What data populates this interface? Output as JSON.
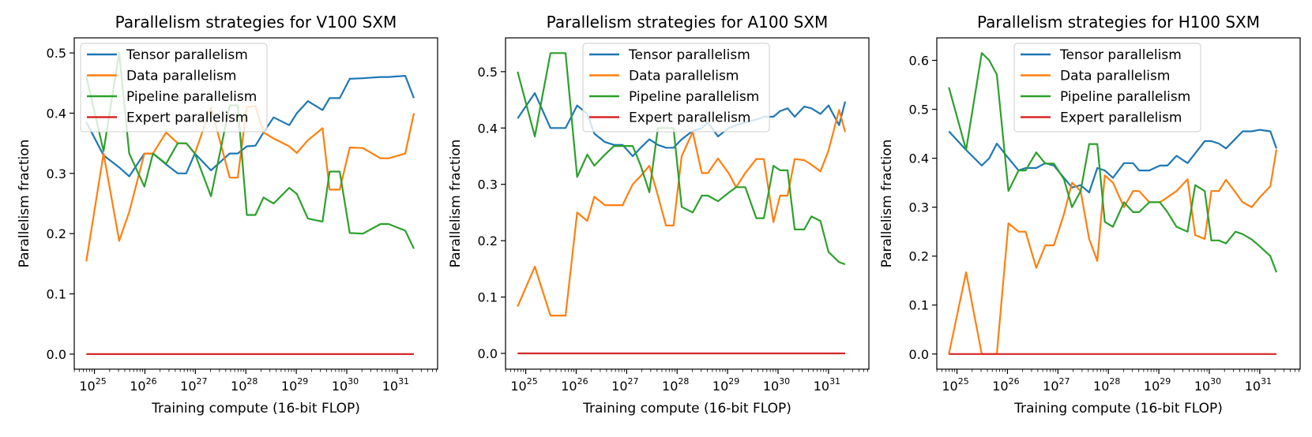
{
  "chart_data": [
    {
      "type": "line",
      "title": "Parallelism strategies for V100 SXM",
      "xlabel": "Training compute (16-bit FLOP)",
      "ylabel": "Parallelism fraction",
      "xscale": "log",
      "xlim_log10": [
        24.6,
        31.8
      ],
      "ylim": [
        -0.025,
        0.525
      ],
      "yticks": [
        0.0,
        0.1,
        0.2,
        0.3,
        0.4,
        0.5
      ],
      "ytick_labels": [
        "0.0",
        "0.1",
        "0.2",
        "0.3",
        "0.4",
        "0.5"
      ],
      "xticks_log10": [
        25,
        26,
        27,
        28,
        29,
        30,
        31
      ],
      "xtick_labels": [
        "25",
        "26",
        "27",
        "28",
        "29",
        "30",
        "31"
      ],
      "legend_position": "top-left",
      "x_log10": [
        24.84,
        25.18,
        25.49,
        25.69,
        25.99,
        26.16,
        26.42,
        26.65,
        26.82,
        26.99,
        27.31,
        27.68,
        27.84,
        28.02,
        28.19,
        28.35,
        28.55,
        28.86,
        29.01,
        29.23,
        29.52,
        29.66,
        29.86,
        30.06,
        30.32,
        30.67,
        30.83,
        31.16,
        31.33
      ],
      "series": [
        {
          "name": "Tensor parallelism",
          "color": "#1f77b4",
          "values": [
            0.385,
            0.33,
            0.31,
            0.295,
            0.333,
            0.333,
            0.315,
            0.3,
            0.3,
            0.333,
            0.305,
            0.333,
            0.333,
            0.345,
            0.346,
            0.368,
            0.393,
            0.38,
            0.4,
            0.42,
            0.405,
            0.425,
            0.425,
            0.457,
            0.458,
            0.46,
            0.46,
            0.462,
            0.425
          ]
        },
        {
          "name": "Data parallelism",
          "color": "#ff7f0e",
          "values": [
            0.154,
            0.333,
            0.188,
            0.236,
            0.333,
            0.333,
            0.368,
            0.35,
            0.35,
            0.333,
            0.41,
            0.293,
            0.293,
            0.41,
            0.412,
            0.368,
            0.358,
            0.345,
            0.334,
            0.355,
            0.375,
            0.273,
            0.273,
            0.343,
            0.342,
            0.325,
            0.325,
            0.333,
            0.4
          ]
        },
        {
          "name": "Pipeline parallelism",
          "color": "#2ca02c",
          "values": [
            0.461,
            0.337,
            0.5,
            0.333,
            0.278,
            0.333,
            0.316,
            0.35,
            0.35,
            0.333,
            0.262,
            0.413,
            0.413,
            0.231,
            0.231,
            0.26,
            0.25,
            0.276,
            0.266,
            0.225,
            0.22,
            0.303,
            0.303,
            0.201,
            0.2,
            0.216,
            0.216,
            0.205,
            0.175
          ]
        },
        {
          "name": "Expert parallelism",
          "color": "#d62728",
          "values": [
            0,
            0,
            0,
            0,
            0,
            0,
            0,
            0,
            0,
            0,
            0,
            0,
            0,
            0,
            0,
            0,
            0,
            0,
            0,
            0,
            0,
            0,
            0,
            0,
            0,
            0,
            0,
            0,
            0
          ]
        }
      ]
    },
    {
      "type": "line",
      "title": "Parallelism strategies for A100 SXM",
      "xlabel": "Training compute (16-bit FLOP)",
      "ylabel": "Parallelism fraction",
      "xscale": "log",
      "xlim_log10": [
        24.6,
        31.8
      ],
      "ylim": [
        -0.028,
        0.56
      ],
      "yticks": [
        0.0,
        0.1,
        0.2,
        0.3,
        0.4,
        0.5
      ],
      "ytick_labels": [
        "0.0",
        "0.1",
        "0.2",
        "0.3",
        "0.4",
        "0.5"
      ],
      "xticks_log10": [
        25,
        26,
        27,
        28,
        29,
        30,
        31
      ],
      "xtick_labels": [
        "25",
        "26",
        "27",
        "28",
        "29",
        "30",
        "31"
      ],
      "legend_position": "top-center",
      "x_log10": [
        24.84,
        25.18,
        25.49,
        25.64,
        25.79,
        26.02,
        26.22,
        26.36,
        26.57,
        26.75,
        26.92,
        27.12,
        27.28,
        27.45,
        27.62,
        27.78,
        27.93,
        28.09,
        28.31,
        28.49,
        28.61,
        28.81,
        29.02,
        29.17,
        29.35,
        29.57,
        29.72,
        29.91,
        30.04,
        30.19,
        30.33,
        30.52,
        30.66,
        30.84,
        31.0,
        31.21,
        31.33
      ],
      "series": [
        {
          "name": "Tensor parallelism",
          "color": "#1f77b4",
          "values": [
            0.417,
            0.462,
            0.4,
            0.4,
            0.4,
            0.44,
            0.425,
            0.39,
            0.375,
            0.37,
            0.37,
            0.35,
            0.365,
            0.38,
            0.37,
            0.365,
            0.365,
            0.38,
            0.395,
            0.4,
            0.41,
            0.385,
            0.4,
            0.405,
            0.41,
            0.415,
            0.42,
            0.42,
            0.43,
            0.435,
            0.42,
            0.438,
            0.435,
            0.425,
            0.44,
            0.405,
            0.447
          ]
        },
        {
          "name": "Data parallelism",
          "color": "#ff7f0e",
          "values": [
            0.083,
            0.154,
            0.067,
            0.067,
            0.067,
            0.25,
            0.235,
            0.278,
            0.263,
            0.263,
            0.263,
            0.3,
            0.315,
            0.333,
            0.28,
            0.227,
            0.227,
            0.35,
            0.393,
            0.32,
            0.32,
            0.346,
            0.32,
            0.295,
            0.32,
            0.345,
            0.345,
            0.233,
            0.28,
            0.28,
            0.345,
            0.343,
            0.335,
            0.323,
            0.36,
            0.432,
            0.393
          ]
        },
        {
          "name": "Pipeline parallelism",
          "color": "#2ca02c",
          "values": [
            0.5,
            0.385,
            0.533,
            0.533,
            0.533,
            0.313,
            0.353,
            0.333,
            0.353,
            0.368,
            0.368,
            0.368,
            0.333,
            0.286,
            0.4,
            0.4,
            0.4,
            0.26,
            0.25,
            0.28,
            0.28,
            0.27,
            0.285,
            0.295,
            0.295,
            0.24,
            0.24,
            0.333,
            0.325,
            0.325,
            0.22,
            0.22,
            0.243,
            0.235,
            0.18,
            0.162,
            0.158
          ]
        },
        {
          "name": "Expert parallelism",
          "color": "#d62728",
          "values": [
            0,
            0,
            0,
            0,
            0,
            0,
            0,
            0,
            0,
            0,
            0,
            0,
            0,
            0,
            0,
            0,
            0,
            0,
            0,
            0,
            0,
            0,
            0,
            0,
            0,
            0,
            0,
            0,
            0,
            0,
            0,
            0,
            0,
            0,
            0,
            0,
            0
          ]
        }
      ]
    },
    {
      "type": "line",
      "title": "Parallelism strategies for H100 SXM",
      "xlabel": "Training compute (16-bit FLOP)",
      "ylabel": "Parallelism fraction",
      "xscale": "log",
      "xlim_log10": [
        24.6,
        31.8
      ],
      "ylim": [
        -0.031,
        0.646
      ],
      "yticks": [
        0.0,
        0.1,
        0.2,
        0.3,
        0.4,
        0.5,
        0.6
      ],
      "ytick_labels": [
        "0.0",
        "0.1",
        "0.2",
        "0.3",
        "0.4",
        "0.5",
        "0.6"
      ],
      "xticks_log10": [
        25,
        26,
        27,
        28,
        29,
        30,
        31
      ],
      "xtick_labels": [
        "25",
        "26",
        "27",
        "28",
        "29",
        "30",
        "31"
      ],
      "legend_position": "top-center",
      "x_log10": [
        24.84,
        25.18,
        25.49,
        25.64,
        25.79,
        26.02,
        26.22,
        26.36,
        26.57,
        26.75,
        26.92,
        27.12,
        27.28,
        27.45,
        27.62,
        27.78,
        27.93,
        28.09,
        28.31,
        28.49,
        28.61,
        28.81,
        29.02,
        29.17,
        29.35,
        29.57,
        29.72,
        29.91,
        30.04,
        30.19,
        30.33,
        30.52,
        30.66,
        30.84,
        31.0,
        31.21,
        31.33
      ],
      "series": [
        {
          "name": "Tensor parallelism",
          "color": "#1f77b4",
          "values": [
            0.455,
            0.417,
            0.385,
            0.4,
            0.43,
            0.4,
            0.375,
            0.38,
            0.38,
            0.39,
            0.385,
            0.36,
            0.34,
            0.345,
            0.33,
            0.38,
            0.375,
            0.36,
            0.39,
            0.39,
            0.375,
            0.375,
            0.385,
            0.385,
            0.405,
            0.39,
            0.41,
            0.435,
            0.435,
            0.43,
            0.42,
            0.44,
            0.455,
            0.455,
            0.458,
            0.455,
            0.42
          ]
        },
        {
          "name": "Data parallelism",
          "color": "#ff7f0e",
          "values": [
            0.0,
            0.167,
            0.0,
            0.0,
            0.0,
            0.267,
            0.25,
            0.25,
            0.176,
            0.222,
            0.222,
            0.286,
            0.35,
            0.333,
            0.235,
            0.19,
            0.365,
            0.35,
            0.3,
            0.333,
            0.333,
            0.31,
            0.31,
            0.32,
            0.333,
            0.357,
            0.243,
            0.235,
            0.333,
            0.333,
            0.356,
            0.33,
            0.31,
            0.3,
            0.32,
            0.343,
            0.418
          ]
        },
        {
          "name": "Pipeline parallelism",
          "color": "#2ca02c",
          "values": [
            0.545,
            0.417,
            0.615,
            0.6,
            0.571,
            0.333,
            0.375,
            0.375,
            0.412,
            0.389,
            0.389,
            0.357,
            0.3,
            0.333,
            0.429,
            0.429,
            0.27,
            0.26,
            0.31,
            0.29,
            0.29,
            0.31,
            0.31,
            0.29,
            0.26,
            0.25,
            0.345,
            0.333,
            0.232,
            0.232,
            0.226,
            0.25,
            0.245,
            0.234,
            0.22,
            0.2,
            0.167
          ]
        },
        {
          "name": "Expert parallelism",
          "color": "#d62728",
          "values": [
            0,
            0,
            0,
            0,
            0,
            0,
            0,
            0,
            0,
            0,
            0,
            0,
            0,
            0,
            0,
            0,
            0,
            0,
            0,
            0,
            0,
            0,
            0,
            0,
            0,
            0,
            0,
            0,
            0,
            0,
            0,
            0,
            0,
            0,
            0,
            0,
            0
          ]
        }
      ]
    }
  ]
}
